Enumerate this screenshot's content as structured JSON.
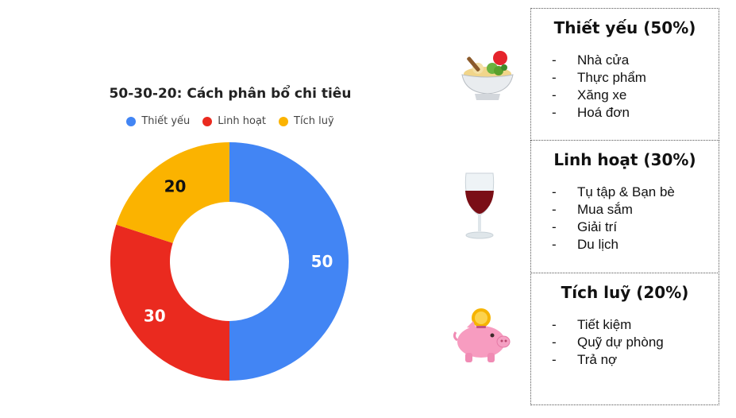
{
  "chart_data": {
    "type": "pie",
    "title": "50-30-20: Cách phân bổ chi tiêu",
    "categories": [
      "Thiết yếu",
      "Linh hoạt",
      "Tích luỹ"
    ],
    "values": [
      50,
      30,
      20
    ],
    "colors": [
      "#4285f4",
      "#ea2a1f",
      "#fbb300"
    ],
    "label_colors": [
      "#ffffff",
      "#ffffff",
      "#111111"
    ],
    "legend": "top",
    "donut": true
  },
  "panels": [
    {
      "title": "Thiết yếu (50%)",
      "icon": "salad-bowl-icon",
      "items": [
        "Nhà cửa",
        "Thực phẩm",
        "Xăng xe",
        "Hoá đơn"
      ]
    },
    {
      "title": "Linh hoạt (30%)",
      "icon": "wine-glass-icon",
      "items": [
        "Tụ tập & Bạn bè",
        "Mua sắm",
        "Giải trí",
        "Du lịch"
      ]
    },
    {
      "title": "Tích luỹ (20%)",
      "icon": "piggy-bank-icon",
      "items": [
        "Tiết kiệm",
        "Quỹ dự phòng",
        "Trả nợ"
      ]
    }
  ],
  "dash": "-"
}
